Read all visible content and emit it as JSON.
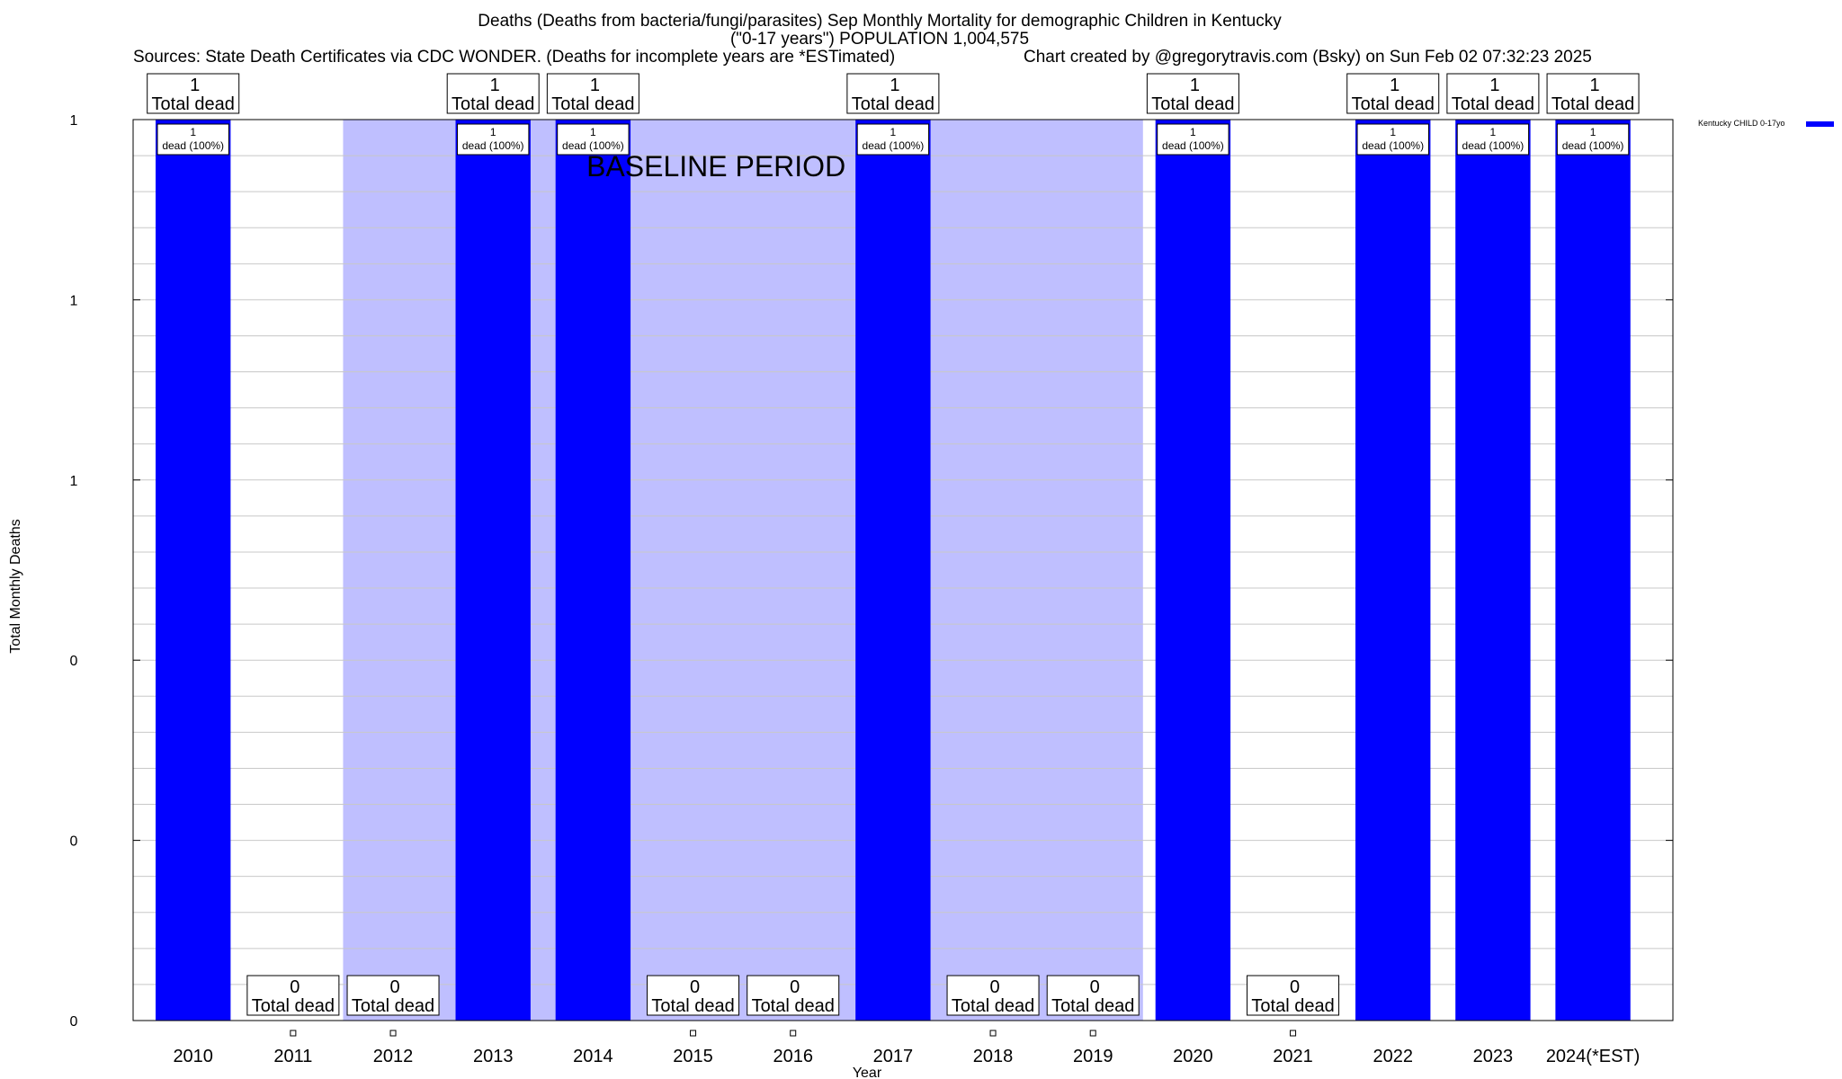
{
  "header": {
    "title_line1": "Deaths (Deaths from bacteria/fungi/parasites) Sep Monthly Mortality for demographic Children in Kentucky",
    "title_line2": "(\"0-17 years\") POPULATION 1,004,575",
    "sources": "Sources: State Death Certificates via CDC WONDER. (Deaths for incomplete years are *ESTimated)",
    "credit": "Chart created by @gregorytravis.com (Bsky) on Sun Feb 02 07:32:23 2025"
  },
  "colors": {
    "bar": "#0000ff",
    "baseline_shade": "#bfbfff",
    "grid": "#c8c8c8"
  },
  "chart_data": {
    "type": "bar",
    "xlabel": "Year",
    "ylabel": "Total Monthly Deaths",
    "ylim": [
      0,
      1
    ],
    "y_tick_labels": [
      "0",
      "0",
      "0",
      "1",
      "1",
      "1"
    ],
    "grid": true,
    "legend_position": "top-right",
    "series": [
      {
        "name": "Kentucky CHILD 0-17yo",
        "values": [
          1,
          0,
          0,
          1,
          1,
          0,
          0,
          1,
          0,
          0,
          1,
          0,
          1,
          1,
          1
        ]
      }
    ],
    "categories": [
      "2010",
      "2011",
      "2012",
      "2013",
      "2014",
      "2015",
      "2016",
      "2017",
      "2018",
      "2019",
      "2020",
      "2021",
      "2022",
      "2023",
      "2024(*EST)"
    ],
    "total_labels": [
      {
        "count": "1",
        "text": "Total dead"
      },
      {
        "count": "0",
        "text": "Total dead"
      },
      {
        "count": "0",
        "text": "Total dead"
      },
      {
        "count": "1",
        "text": "Total dead"
      },
      {
        "count": "1",
        "text": "Total dead"
      },
      {
        "count": "0",
        "text": "Total dead"
      },
      {
        "count": "0",
        "text": "Total dead"
      },
      {
        "count": "1",
        "text": "Total dead"
      },
      {
        "count": "0",
        "text": "Total dead"
      },
      {
        "count": "0",
        "text": "Total dead"
      },
      {
        "count": "1",
        "text": "Total dead"
      },
      {
        "count": "0",
        "text": "Total dead"
      },
      {
        "count": "1",
        "text": "Total dead"
      },
      {
        "count": "1",
        "text": "Total dead"
      },
      {
        "count": "1",
        "text": "Total dead"
      }
    ],
    "bar_labels": [
      {
        "count": "1",
        "text": "dead (100%)"
      },
      null,
      null,
      {
        "count": "1",
        "text": "dead (100%)"
      },
      {
        "count": "1",
        "text": "dead (100%)"
      },
      null,
      null,
      {
        "count": "1",
        "text": "dead (100%)"
      },
      null,
      null,
      {
        "count": "1",
        "text": "dead (100%)"
      },
      null,
      {
        "count": "1",
        "text": "dead (100%)"
      },
      {
        "count": "1",
        "text": "dead (100%)"
      },
      {
        "count": "1",
        "text": "dead (100%)"
      }
    ],
    "annotations": [
      {
        "text": "BASELINE PERIOD",
        "span": [
          "2012",
          "2019"
        ]
      }
    ]
  }
}
